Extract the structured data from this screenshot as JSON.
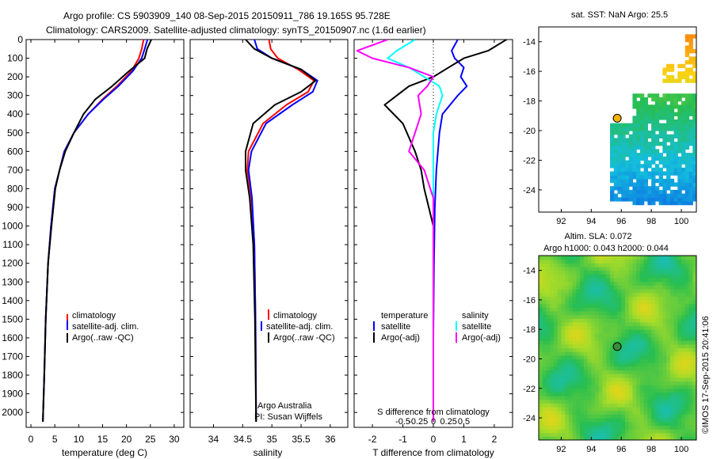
{
  "header": {
    "line1": "Argo profile: CS 5903909_140 08-Sep-2015 20150911_786 19.165S 95.728E",
    "line2": "Climatology: CARS2009. Satellite-adjusted climatology: synTS_20150907.nc (1.6d earlier)"
  },
  "credit": "©IMOS 17-Sep-2015 20:41:06",
  "colors": {
    "red": "#ff0000",
    "blue": "#0000ff",
    "black": "#000000",
    "cyan": "#00ffff",
    "magenta": "#ff00ff"
  },
  "chart_data": [
    {
      "type": "line",
      "panel": "temperature",
      "xlabel": "temperature (deg C)",
      "xlim": [
        -1,
        32
      ],
      "xticks": [
        0,
        5,
        10,
        15,
        20,
        25,
        30
      ],
      "ylim": [
        2080,
        0
      ],
      "yticks": [
        0,
        100,
        200,
        300,
        400,
        500,
        600,
        700,
        800,
        900,
        1000,
        1100,
        1200,
        1300,
        1400,
        1500,
        1600,
        1700,
        1800,
        1900,
        2000
      ],
      "legend": [
        "climatology",
        "satellite-adj. clim.",
        "Argo(..raw -QC)"
      ],
      "legend_position": "lower-center",
      "series": [
        {
          "name": "climatology",
          "color": "#ff0000",
          "x": [
            23.6,
            23.2,
            22.6,
            21,
            18,
            15,
            12,
            9,
            7,
            6,
            5,
            4.2,
            3.6,
            3.1,
            2.8,
            2.5
          ],
          "y": [
            0,
            50,
            100,
            170,
            250,
            320,
            400,
            500,
            600,
            700,
            800,
            1000,
            1200,
            1500,
            1800,
            2050
          ]
        },
        {
          "name": "satellite-adj. clim.",
          "color": "#0000ff",
          "x": [
            24.4,
            23.8,
            23.2,
            21.3,
            18.3,
            15.2,
            12,
            9,
            7,
            6,
            5,
            4.2,
            3.6,
            3.1,
            2.8,
            2.5
          ],
          "y": [
            0,
            50,
            100,
            170,
            250,
            320,
            400,
            500,
            600,
            700,
            800,
            1000,
            1200,
            1500,
            1800,
            2050
          ]
        },
        {
          "name": "Argo(..raw -QC)",
          "color": "#000000",
          "x": [
            25.2,
            24.3,
            23.8,
            20.5,
            17,
            13.5,
            11,
            9,
            7.2,
            6,
            5.1,
            4.3,
            3.6,
            3.1,
            2.8,
            2.5
          ],
          "y": [
            0,
            50,
            100,
            170,
            250,
            320,
            400,
            500,
            600,
            700,
            800,
            1000,
            1200,
            1500,
            1800,
            2050
          ]
        }
      ]
    },
    {
      "type": "line",
      "panel": "salinity",
      "xlabel": "salinity",
      "xlim": [
        33.6,
        36.3
      ],
      "xticks": [
        34,
        34.5,
        35,
        35.5,
        36
      ],
      "ylim": [
        2080,
        0
      ],
      "legend": [
        "climatology",
        "satellite-adj. clim.",
        "Argo(..raw -QC)"
      ],
      "legend_position": "lower-center",
      "annotation": [
        "Argo Australia",
        "PI: Susan Wijffels"
      ],
      "series": [
        {
          "name": "climatology",
          "color": "#ff0000",
          "x": [
            34.95,
            34.98,
            35.1,
            35.45,
            35.72,
            35.62,
            35.25,
            34.85,
            34.6,
            34.58,
            34.65,
            34.7,
            34.72,
            34.73
          ],
          "y": [
            0,
            50,
            100,
            160,
            220,
            280,
            350,
            450,
            600,
            700,
            850,
            1100,
            1500,
            2050
          ]
        },
        {
          "name": "satellite-adj. clim.",
          "color": "#0000ff",
          "x": [
            34.7,
            34.75,
            35.0,
            35.5,
            35.78,
            35.7,
            35.35,
            34.9,
            34.65,
            34.6,
            34.66,
            34.7,
            34.72,
            34.73
          ],
          "y": [
            0,
            50,
            100,
            160,
            220,
            280,
            350,
            450,
            600,
            700,
            850,
            1100,
            1500,
            2050
          ]
        },
        {
          "name": "Argo(..raw -QC)",
          "color": "#000000",
          "x": [
            34.55,
            34.7,
            35.0,
            35.5,
            35.75,
            35.5,
            35.05,
            34.68,
            34.55,
            34.55,
            34.62,
            34.68,
            34.71,
            34.73
          ],
          "y": [
            0,
            50,
            100,
            160,
            220,
            280,
            350,
            450,
            600,
            700,
            850,
            1100,
            1500,
            2050
          ]
        }
      ]
    },
    {
      "type": "line",
      "panel": "difference",
      "xlabel": "T difference from climatology",
      "xlim": [
        -2.6,
        2.6
      ],
      "xticks": [
        -2,
        -1,
        0,
        1,
        2
      ],
      "x2label": "S difference from climatology",
      "x2ticks": [
        "-0.5",
        "-0.25",
        "0",
        "0.25",
        "0.5"
      ],
      "ylim": [
        2080,
        0
      ],
      "legend_groups": [
        {
          "title": "temperature",
          "entries": [
            "satellite",
            "Argo(-adj)"
          ]
        },
        {
          "title": "salinity",
          "entries": [
            "satellite",
            "Argo(-adj)"
          ]
        }
      ],
      "series": [
        {
          "name": "temperature satellite",
          "color": "#0000ff",
          "x": [
            0.8,
            0.6,
            0.7,
            1.0,
            0.9,
            1.1,
            0.8,
            0.3,
            0.2,
            0.1,
            0.05,
            0.02,
            0.0,
            0.0
          ],
          "y": [
            0,
            60,
            100,
            150,
            200,
            250,
            300,
            400,
            500,
            700,
            900,
            1200,
            1600,
            2050
          ]
        },
        {
          "name": "temperature Argo(-adj)",
          "color": "#000000",
          "x": [
            2.4,
            1.8,
            1.0,
            0.5,
            0.0,
            -0.8,
            -1.6,
            -1.0,
            -0.6,
            -0.4,
            -0.3,
            0.0,
            0.0,
            0.0
          ],
          "y": [
            0,
            60,
            100,
            150,
            200,
            250,
            350,
            450,
            600,
            700,
            800,
            1000,
            1500,
            2050
          ]
        },
        {
          "name": "salinity satellite",
          "color": "#00ffff",
          "x": [
            -0.6,
            -1.2,
            -1.5,
            -0.8,
            -0.3,
            0.2,
            0.3,
            0.1,
            0.0,
            0.0,
            0.0,
            0.0,
            0.0,
            0.0
          ],
          "y": [
            0,
            60,
            100,
            150,
            200,
            250,
            300,
            400,
            500,
            700,
            900,
            1200,
            1600,
            2050
          ]
        },
        {
          "name": "salinity Argo(-adj)",
          "color": "#ff00ff",
          "x": [
            -1.5,
            -2.5,
            -2.0,
            -0.8,
            0.0,
            -0.2,
            -0.5,
            -0.4,
            -0.6,
            -0.8,
            -0.3,
            0.0,
            0.0,
            0.0
          ],
          "y": [
            0,
            60,
            100,
            150,
            200,
            250,
            300,
            400,
            500,
            600,
            700,
            850,
            1200,
            2050
          ]
        }
      ]
    },
    {
      "type": "heatmap",
      "panel": "sst-map",
      "title": "sat. SST: NaN  Argo: 25.5",
      "xlim": [
        90.5,
        101
      ],
      "ylim": [
        -25.5,
        -13
      ],
      "xticks": [
        92,
        94,
        96,
        98,
        100
      ],
      "xticklabels": [
        "92",
        "94",
        "96",
        "98",
        "100"
      ],
      "yticks": [
        -14,
        -16,
        -18,
        -20,
        -22,
        -24
      ],
      "yticklabels": [
        "-14",
        "-16",
        "-18",
        "-20",
        "-22",
        "-24"
      ],
      "marker": {
        "lon": 95.728,
        "lat": -19.165,
        "color": "#f5b400"
      }
    },
    {
      "type": "heatmap",
      "panel": "sla-map",
      "title": [
        "Altim. SLA: 0.072",
        "Argo h1000: 0.043 h2000: 0.044"
      ],
      "xlim": [
        90.5,
        101
      ],
      "ylim": [
        -25.5,
        -13
      ],
      "xticks": [
        92,
        94,
        96,
        98,
        100
      ],
      "xticklabels": [
        "92",
        "94",
        "96",
        "98",
        "100"
      ],
      "yticks": [
        -14,
        -16,
        -18,
        -20,
        -22,
        -24
      ],
      "yticklabels": [
        "-14",
        "-16",
        "-18",
        "-20",
        "-22",
        "-24"
      ],
      "marker": {
        "lon": 95.728,
        "lat": -19.165,
        "color": "#3a8c3a"
      }
    }
  ]
}
